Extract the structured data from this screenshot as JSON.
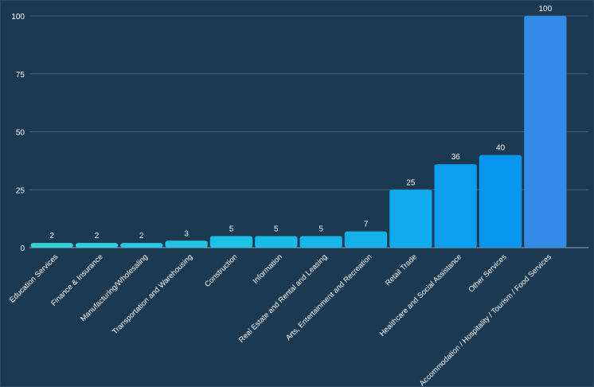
{
  "chart_data": {
    "type": "bar",
    "title": "",
    "xlabel": "",
    "ylabel": "",
    "ylim": [
      0,
      100
    ],
    "yticks": [
      0,
      25,
      50,
      75,
      100
    ],
    "grid": true,
    "legend": "none",
    "categories": [
      "Education Services",
      "Finance & Insurance",
      "Manufacturing/Wholesaling",
      "Transportation and Warehousing",
      "Construction",
      "Information",
      "Real Estate and Rental and Leasing",
      "Arts, Entertainment and Recreation",
      "Retail Trade",
      "Healthcare and Social Assistance",
      "Other Services",
      "Accommodation / Hospitality / Tourism / Food Services"
    ],
    "values": [
      2,
      2,
      2,
      3,
      5,
      5,
      5,
      7,
      25,
      36,
      40,
      100
    ],
    "bar_colors": [
      "#2fd3d8",
      "#2fd0de",
      "#26c9e1",
      "#22c3e4",
      "#1cc2e6",
      "#19bce8",
      "#16b6ea",
      "#14b0ec",
      "#10aaee",
      "#0c9ff0",
      "#0795ee",
      "#3389e6"
    ],
    "colors": {
      "background": "#1b3a52",
      "grid": "#3e5f7a",
      "text": "#ffffff"
    }
  }
}
